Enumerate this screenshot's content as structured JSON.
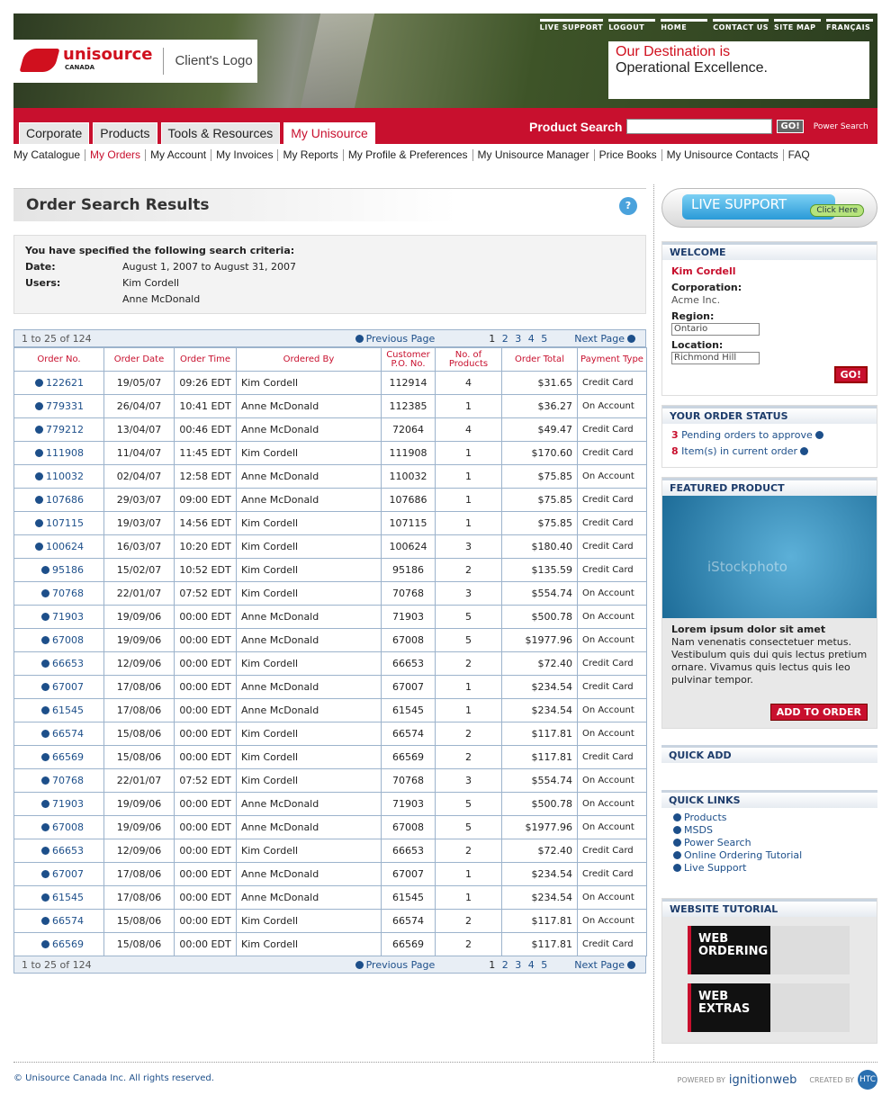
{
  "header": {
    "top_links": [
      "LIVE SUPPORT",
      "LOGOUT",
      "HOME",
      "CONTACT US",
      "SITE MAP",
      "FRANÇAIS"
    ],
    "logo": "unisource",
    "logo_sub": "CANADA",
    "client_logo": "Client's Logo",
    "tagline": [
      "Our Destination is",
      "Operational Excellence."
    ]
  },
  "tabs": [
    "Corporate",
    "Products",
    "Tools & Resources",
    "My Unisource"
  ],
  "search": {
    "label": "Product Search",
    "button": "GO!",
    "power_search": "Power Search"
  },
  "subnav": [
    "My Catalogue",
    "My Orders",
    "My Account",
    "My Invoices",
    "My Reports",
    "My Profile & Preferences",
    "My Unisource Manager",
    "Price Books",
    "My Unisource Contacts",
    "FAQ"
  ],
  "page_title": "Order Search Results",
  "help": "?",
  "criteria": {
    "heading": "You have specified the following search criteria:",
    "rows": [
      {
        "label": "Date:",
        "values": [
          "August 1, 2007 to August 31, 2007"
        ]
      },
      {
        "label": "Users:",
        "values": [
          "Kim Cordell",
          "Anne McDonald"
        ]
      }
    ]
  },
  "pager": {
    "range": "1 to 25 of 124",
    "previous": "Previous Page",
    "pages": [
      "1",
      "2",
      "3",
      "4",
      "5"
    ],
    "next": "Next Page"
  },
  "table": {
    "columns": [
      "Order No.",
      "Order Date",
      "Order Time",
      "Ordered By",
      "Customer P.O. No.",
      "No. of Products",
      "Order Total",
      "Payment Type"
    ],
    "rows": [
      [
        "122621",
        "19/05/07",
        "09:26 EDT",
        "Kim Cordell",
        "112914",
        "4",
        "$31.65",
        "Credit Card"
      ],
      [
        "779331",
        "26/04/07",
        "10:41 EDT",
        "Anne McDonald",
        "112385",
        "1",
        "$36.27",
        "On Account"
      ],
      [
        "779212",
        "13/04/07",
        "00:46 EDT",
        "Anne McDonald",
        "72064",
        "4",
        "$49.47",
        "Credit Card"
      ],
      [
        "111908",
        "11/04/07",
        "11:45 EDT",
        "Kim Cordell",
        "111908",
        "1",
        "$170.60",
        "Credit Card"
      ],
      [
        "110032",
        "02/04/07",
        "12:58 EDT",
        "Anne McDonald",
        "110032",
        "1",
        "$75.85",
        "On Account"
      ],
      [
        "107686",
        "29/03/07",
        "09:00 EDT",
        "Anne McDonald",
        "107686",
        "1",
        "$75.85",
        "Credit Card"
      ],
      [
        "107115",
        "19/03/07",
        "14:56 EDT",
        "Kim Cordell",
        "107115",
        "1",
        "$75.85",
        "Credit Card"
      ],
      [
        "100624",
        "16/03/07",
        "10:20 EDT",
        "Kim Cordell",
        "100624",
        "3",
        "$180.40",
        "Credit Card"
      ],
      [
        "95186",
        "15/02/07",
        "10:52 EDT",
        "Kim Cordell",
        "95186",
        "2",
        "$135.59",
        "Credit Card"
      ],
      [
        "70768",
        "22/01/07",
        "07:52 EDT",
        "Kim Cordell",
        "70768",
        "3",
        "$554.74",
        "On Account"
      ],
      [
        "71903",
        "19/09/06",
        "00:00 EDT",
        "Anne McDonald",
        "71903",
        "5",
        "$500.78",
        "On Account"
      ],
      [
        "67008",
        "19/09/06",
        "00:00 EDT",
        "Anne McDonald",
        "67008",
        "5",
        "$1977.96",
        "On Account"
      ],
      [
        "66653",
        "12/09/06",
        "00:00 EDT",
        "Kim Cordell",
        "66653",
        "2",
        "$72.40",
        "Credit Card"
      ],
      [
        "67007",
        "17/08/06",
        "00:00 EDT",
        "Anne McDonald",
        "67007",
        "1",
        "$234.54",
        "Credit Card"
      ],
      [
        "61545",
        "17/08/06",
        "00:00 EDT",
        "Anne McDonald",
        "61545",
        "1",
        "$234.54",
        "On Account"
      ],
      [
        "66574",
        "15/08/06",
        "00:00 EDT",
        "Kim Cordell",
        "66574",
        "2",
        "$117.81",
        "On Account"
      ],
      [
        "66569",
        "15/08/06",
        "00:00 EDT",
        "Kim Cordell",
        "66569",
        "2",
        "$117.81",
        "Credit Card"
      ],
      [
        "70768",
        "22/01/07",
        "07:52 EDT",
        "Kim Cordell",
        "70768",
        "3",
        "$554.74",
        "On Account"
      ],
      [
        "71903",
        "19/09/06",
        "00:00 EDT",
        "Anne McDonald",
        "71903",
        "5",
        "$500.78",
        "On Account"
      ],
      [
        "67008",
        "19/09/06",
        "00:00 EDT",
        "Anne McDonald",
        "67008",
        "5",
        "$1977.96",
        "On Account"
      ],
      [
        "66653",
        "12/09/06",
        "00:00 EDT",
        "Kim Cordell",
        "66653",
        "2",
        "$72.40",
        "Credit Card"
      ],
      [
        "67007",
        "17/08/06",
        "00:00 EDT",
        "Anne McDonald",
        "67007",
        "1",
        "$234.54",
        "Credit Card"
      ],
      [
        "61545",
        "17/08/06",
        "00:00 EDT",
        "Anne McDonald",
        "61545",
        "1",
        "$234.54",
        "On Account"
      ],
      [
        "66574",
        "15/08/06",
        "00:00 EDT",
        "Kim Cordell",
        "66574",
        "2",
        "$117.81",
        "On Account"
      ],
      [
        "66569",
        "15/08/06",
        "00:00 EDT",
        "Kim Cordell",
        "66569",
        "2",
        "$117.81",
        "Credit Card"
      ]
    ]
  },
  "sidebar": {
    "live_support": "LIVE SUPPORT",
    "click_here": "Click Here",
    "welcome": {
      "title": "WELCOME",
      "name": "Kim Cordell",
      "corporation_label": "Corporation:",
      "corporation": "Acme Inc.",
      "region_label": "Region:",
      "region": "Ontario",
      "location_label": "Location:",
      "location": "Richmond Hill",
      "go": "GO!"
    },
    "order_status": {
      "title": "YOUR ORDER STATUS",
      "items": [
        {
          "count": "3",
          "text": "Pending orders to approve"
        },
        {
          "count": "8",
          "text": "Item(s) in current order"
        }
      ]
    },
    "featured": {
      "title": "FEATURED PRODUCT",
      "watermark": "iStockphoto",
      "heading": "Lorem ipsum dolor sit amet",
      "body": "Nam venenatis consectetuer metus. Vestibulum quis dui quis lectus pretium ornare. Vivamus quis lectus quis leo pulvinar tempor.",
      "button": "ADD TO ORDER"
    },
    "quick_add": {
      "title": "QUICK ADD"
    },
    "quick_links": {
      "title": "QUICK LINKS",
      "links": [
        "Products",
        "MSDS",
        "Power Search",
        "Online Ordering Tutorial",
        "Live Support"
      ]
    },
    "tutorial": {
      "title": "WEBSITE TUTORIAL",
      "items": [
        "WEB ORDERING",
        "WEB EXTRAS"
      ]
    }
  },
  "footer": {
    "copyright": "© Unisource Canada Inc. All rights reserved.",
    "powered_by": "POWERED BY",
    "ignitionweb": "ignitionweb",
    "created_by": "CREATED BY",
    "htc": "HTC"
  }
}
